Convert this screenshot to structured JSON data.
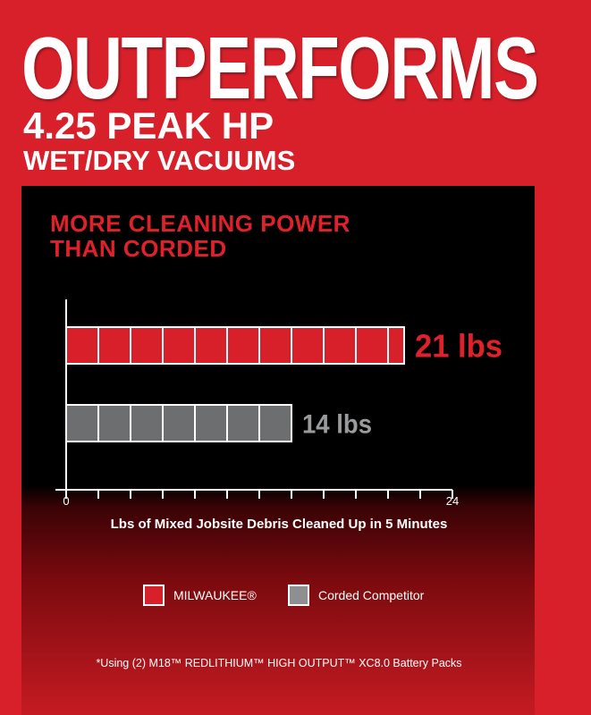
{
  "header": {
    "title": "OUTPERFORMS",
    "line2": "4.25 PEAK HP",
    "line3": "WET/DRY VACUUMS"
  },
  "subtitle": {
    "line1": "MORE CLEANING POWER",
    "line2": "THAN CORDED"
  },
  "footnote": "*Using (2) M18™ REDLITHIUM™ HIGH OUTPUT™ XC8.0 Battery Packs",
  "chart_data": {
    "type": "bar",
    "orientation": "horizontal",
    "categories": [
      "MILWAUKEE®",
      "Corded Competitor"
    ],
    "values": [
      21,
      14
    ],
    "data_labels": [
      "21 lbs",
      "14 lbs"
    ],
    "colors": [
      "#d8202a",
      "#6d6e70"
    ],
    "xlabel": "Lbs of Mixed Jobsite Debris Cleaned Up in 5 Minutes",
    "xlim": [
      0,
      24
    ],
    "tick_labels": [
      "0",
      "24"
    ],
    "tick_step": 2,
    "legend": {
      "placement": "bottom",
      "entries": [
        "MILWAUKEE®",
        "Corded Competitor"
      ]
    }
  }
}
